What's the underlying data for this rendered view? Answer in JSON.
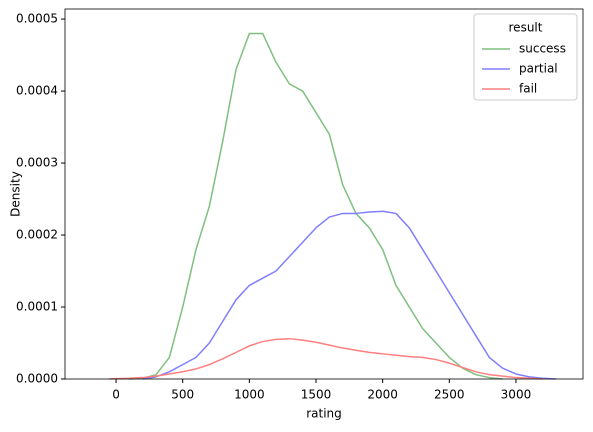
{
  "chart_data": {
    "type": "line",
    "xlabel": "rating",
    "ylabel": "Density",
    "legend_title": "result",
    "legend": "upper right",
    "x": [
      -50,
      0,
      100,
      200,
      300,
      400,
      500,
      600,
      700,
      800,
      900,
      1000,
      1100,
      1200,
      1300,
      1400,
      1500,
      1600,
      1700,
      1800,
      1900,
      2000,
      2100,
      2200,
      2300,
      2400,
      2500,
      2600,
      2700,
      2800,
      2900,
      3000,
      3100,
      3200,
      3300
    ],
    "series": [
      {
        "name": "success",
        "color": "#7fbf7f",
        "values": [
          null,
          null,
          0,
          1e-06,
          6e-06,
          3e-05,
          0.0001,
          0.00018,
          0.00024,
          0.00033,
          0.00043,
          0.00048,
          0.00048,
          0.00044,
          0.00041,
          0.0004,
          0.00037,
          0.00034,
          0.00027,
          0.00023,
          0.00021,
          0.00018,
          0.00013,
          0.0001,
          7e-05,
          5e-05,
          3e-05,
          1.5e-05,
          6e-06,
          2e-06,
          0,
          null,
          null,
          null,
          null
        ]
      },
      {
        "name": "partial",
        "color": "#7f7fff",
        "values": [
          null,
          null,
          null,
          0,
          3e-06,
          1e-05,
          2e-05,
          3e-05,
          5e-05,
          8e-05,
          0.00011,
          0.00013,
          0.00014,
          0.00015,
          0.00017,
          0.00019,
          0.00021,
          0.000225,
          0.00023,
          0.00023,
          0.000232,
          0.000233,
          0.00023,
          0.00021,
          0.00018,
          0.00015,
          0.00012,
          9e-05,
          6e-05,
          3e-05,
          1.5e-05,
          7e-06,
          3e-06,
          1e-06,
          0
        ]
      },
      {
        "name": "fail",
        "color": "#ff7f7f",
        "values": [
          0,
          5e-07,
          1e-06,
          2e-06,
          4e-06,
          7e-06,
          1e-05,
          1.4e-05,
          2e-05,
          2.8e-05,
          3.7e-05,
          4.6e-05,
          5.2e-05,
          5.5e-05,
          5.6e-05,
          5.4e-05,
          5.1e-05,
          4.7e-05,
          4.3e-05,
          4e-05,
          3.7e-05,
          3.5e-05,
          3.3e-05,
          3.1e-05,
          3e-05,
          2.7e-05,
          2.2e-05,
          1.6e-05,
          1e-05,
          6e-06,
          4e-06,
          2e-06,
          1e-06,
          0,
          null
        ]
      }
    ],
    "xlim": [
      -383,
      3503
    ],
    "xticks": [
      0,
      500,
      1000,
      1500,
      2000,
      2500,
      3000
    ],
    "ylim": [
      0,
      0.000514
    ],
    "yticks": [
      {
        "value": 0,
        "label": "0.0000"
      },
      {
        "value": 0.0001,
        "label": "0.0001"
      },
      {
        "value": 0.0002,
        "label": "0.0002"
      },
      {
        "value": 0.0003,
        "label": "0.0003"
      },
      {
        "value": 0.0004,
        "label": "0.0004"
      },
      {
        "value": 0.0005,
        "label": "0.0005"
      }
    ]
  }
}
